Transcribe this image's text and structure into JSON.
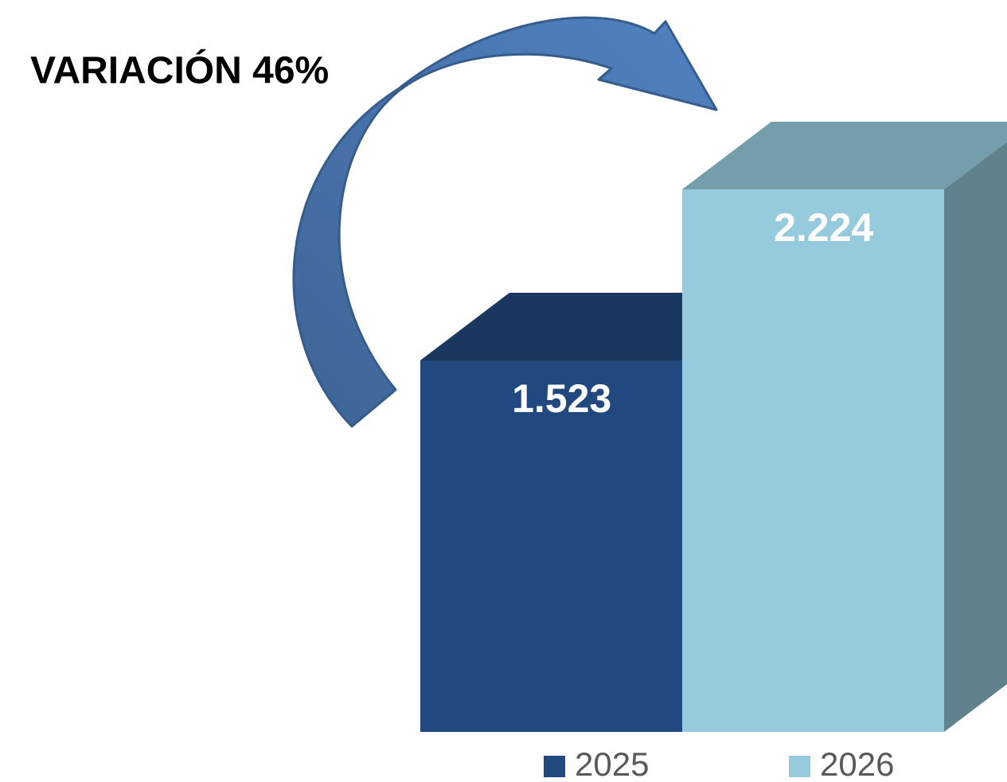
{
  "chart_data": {
    "type": "bar3d",
    "annotation": "VARIACIÓN 46%",
    "categories": [
      null
    ],
    "series": [
      {
        "name": "2025",
        "color": "#21497f",
        "values": [
          1523
        ],
        "value_labels": [
          "1.523"
        ]
      },
      {
        "name": "2026",
        "color": "#95cbdd",
        "values": [
          2224
        ],
        "value_labels": [
          "2.224"
        ]
      }
    ],
    "legend": "bottom"
  }
}
